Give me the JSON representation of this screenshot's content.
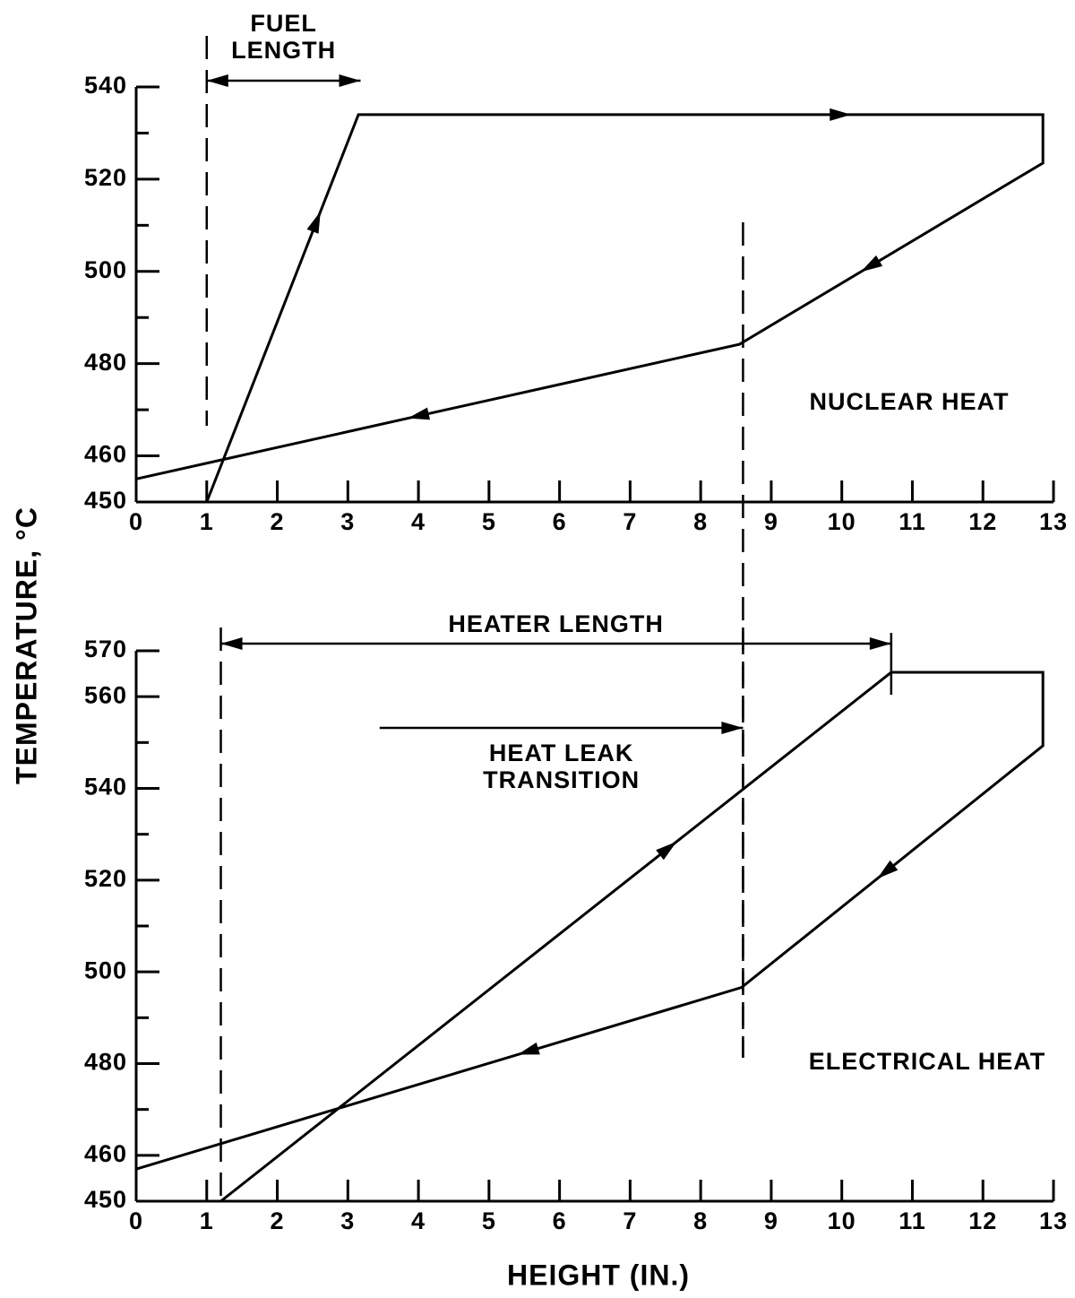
{
  "chart_data": [
    {
      "type": "line",
      "ylabel": "TEMPERATURE, °C",
      "x": [
        1,
        3.15,
        12.85,
        12.85,
        8.55,
        0
      ],
      "values": [
        450,
        534,
        534,
        523.5,
        484.2,
        455
      ],
      "color": "#000000",
      "xlim": [
        0,
        13
      ],
      "xticks": [
        0,
        1,
        2,
        3,
        4,
        5,
        6,
        7,
        8,
        9,
        10,
        11,
        12,
        13
      ],
      "ylim": [
        450,
        540
      ],
      "yticks": [
        450,
        460,
        480,
        500,
        520,
        540
      ],
      "yminor_ticks": [
        470,
        490,
        510,
        530
      ],
      "vlines": [
        1,
        8.6
      ],
      "heat_label": "NUCLEAR HEAT",
      "spans": [
        {
          "lines": [
            "FUEL",
            "LENGTH"
          ],
          "x": [
            1,
            3.18
          ],
          "arrow": "both"
        }
      ]
    },
    {
      "type": "line",
      "xlabel": "HEIGHT (IN.)",
      "x": [
        1.2,
        10.7,
        12.85,
        12.85,
        8.58,
        0
      ],
      "values": [
        450,
        565.3,
        565.3,
        549.3,
        496.6,
        457
      ],
      "color": "#000000",
      "xlim": [
        0,
        13
      ],
      "xticks": [
        0,
        1,
        2,
        3,
        4,
        5,
        6,
        7,
        8,
        9,
        10,
        11,
        12,
        13
      ],
      "ylim": [
        450,
        570
      ],
      "yticks": [
        450,
        460,
        480,
        500,
        520,
        540,
        560,
        570
      ],
      "yminor_ticks": [
        470,
        490,
        510,
        530,
        550
      ],
      "vlines": [
        1.2,
        8.6
      ],
      "heat_label": "ELECTRICAL HEAT",
      "spans": [
        {
          "lines": [
            "HEATER LENGTH"
          ],
          "x": [
            1.2,
            10.7
          ],
          "arrow": "both"
        },
        {
          "lines": [
            "HEAT LEAK",
            "TRANSITION"
          ],
          "x": [
            3.45,
            8.6
          ],
          "arrow": "end"
        }
      ]
    }
  ]
}
